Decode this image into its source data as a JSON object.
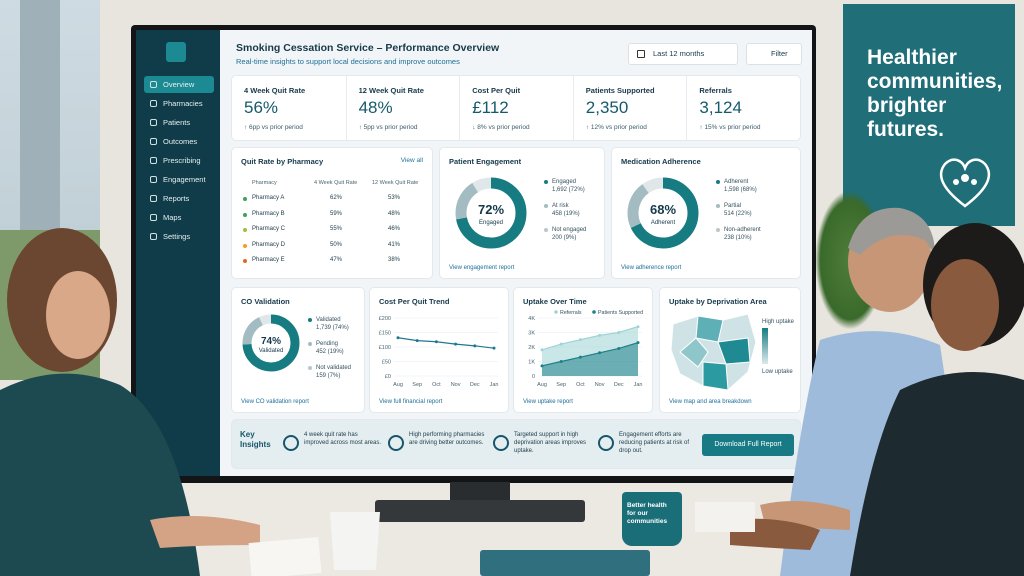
{
  "header": {
    "title": "Smoking Cessation Service – Performance Overview",
    "subtitle": "Real-time insights to support local decisions and improve outcomes",
    "period": "Last 12 months",
    "filter": "Filter"
  },
  "nav": [
    "Overview",
    "Pharmacies",
    "Patients",
    "Outcomes",
    "Prescribing",
    "Engagement",
    "Reports",
    "Maps",
    "Settings"
  ],
  "kpis": [
    {
      "label": "4 Week Quit Rate",
      "value": "56%",
      "change": "↑ 6pp vs prior period"
    },
    {
      "label": "12 Week Quit Rate",
      "value": "48%",
      "change": "↑ 5pp vs prior period"
    },
    {
      "label": "Cost Per Quit",
      "value": "£112",
      "change": "↓ 8% vs prior period"
    },
    {
      "label": "Patients Supported",
      "value": "2,350",
      "change": "↑ 12% vs prior period"
    },
    {
      "label": "Referrals",
      "value": "3,124",
      "change": "↑ 15% vs prior period"
    }
  ],
  "table": {
    "title": "Quit Rate by Pharmacy",
    "link": "View all",
    "columns": [
      "Pharmacy",
      "4 Week Quit Rate",
      "12 Week Quit Rate"
    ],
    "rows": [
      [
        "Pharmacy A",
        "62%",
        "53%"
      ],
      [
        "Pharmacy B",
        "59%",
        "48%"
      ],
      [
        "Pharmacy C",
        "55%",
        "46%"
      ],
      [
        "Pharmacy D",
        "50%",
        "41%"
      ],
      [
        "Pharmacy E",
        "47%",
        "38%"
      ]
    ],
    "dot_colors": [
      "#3aa655",
      "#3aa655",
      "#9cc23c",
      "#f0a020",
      "#e0662a"
    ]
  },
  "chart_data": [
    {
      "type": "pie",
      "title": "Patient Engagement",
      "center_label": "72%",
      "center_caption": "Engaged",
      "categories": [
        "Engaged",
        "At risk",
        "Not engaged"
      ],
      "values": [
        72,
        19,
        9
      ],
      "value_labels": [
        "1,692 (72%)",
        "458 (19%)",
        "200 (9%)"
      ],
      "colors": [
        "#167c82",
        "#a3bcc1",
        "#dfe7e9"
      ],
      "link": "View engagement report"
    },
    {
      "type": "pie",
      "title": "Medication Adherence",
      "center_label": "68%",
      "center_caption": "Adherent",
      "categories": [
        "Adherent",
        "Partial",
        "Non-adherent"
      ],
      "values": [
        68,
        22,
        10
      ],
      "value_labels": [
        "1,598 (68%)",
        "514 (22%)",
        "238 (10%)"
      ],
      "colors": [
        "#167c82",
        "#a3bcc1",
        "#dfe7e9"
      ],
      "link": "View adherence report"
    },
    {
      "type": "pie",
      "title": "CO Validation",
      "center_label": "74%",
      "center_caption": "Validated",
      "categories": [
        "Validated",
        "Pending",
        "Not validated"
      ],
      "values": [
        74,
        19,
        7
      ],
      "value_labels": [
        "1,739 (74%)",
        "452 (19%)",
        "159 (7%)"
      ],
      "colors": [
        "#167c82",
        "#a3bcc1",
        "#dfe7e9"
      ],
      "link": "View CO validation report"
    },
    {
      "type": "line",
      "title": "Cost Per Quit Trend",
      "categories": [
        "Aug",
        "Sep",
        "Oct",
        "Nov",
        "Dec",
        "Jan"
      ],
      "values": [
        132,
        122,
        118,
        110,
        104,
        96
      ],
      "color": "#1f7891",
      "ylim": [
        0,
        200
      ],
      "yticks": [
        {
          "value": 0,
          "label": "£0"
        },
        {
          "value": 50,
          "label": "£50"
        },
        {
          "value": 100,
          "label": "£100"
        },
        {
          "value": 150,
          "label": "£150"
        },
        {
          "value": 200,
          "label": "£200"
        }
      ],
      "grid": true,
      "link": "View full financial report"
    },
    {
      "type": "area",
      "title": "Uptake Over Time",
      "categories": [
        "Aug",
        "Sep",
        "Oct",
        "Nov",
        "Dec",
        "Jan"
      ],
      "series": [
        {
          "name": "Referrals",
          "color": "#9fd3d6",
          "values": [
            1800,
            2200,
            2500,
            2800,
            3000,
            3400
          ]
        },
        {
          "name": "Patients Supported",
          "color": "#1d7f88",
          "values": [
            700,
            1000,
            1300,
            1600,
            1900,
            2300
          ]
        }
      ],
      "ylim": [
        0,
        4000
      ],
      "yticks": [
        0,
        {
          "value": 1000,
          "label": "1K"
        },
        {
          "value": 2000,
          "label": "2K"
        },
        {
          "value": 3000,
          "label": "3K"
        },
        {
          "value": 4000,
          "label": "4K"
        }
      ],
      "grid": true,
      "link": "View uptake report"
    }
  ],
  "map": {
    "title": "Uptake by Deprivation Area",
    "legend_high": "High uptake",
    "legend_low": "Low uptake",
    "link": "View map and area breakdown"
  },
  "insights": {
    "title_line1": "Key",
    "title_line2": "Insights",
    "items": [
      "4 week quit rate has improved across most areas.",
      "High performing pharmacies are driving better outcomes.",
      "Targeted support in high deprivation areas improves uptake.",
      "Engagement efforts are reducing patients at risk of drop out."
    ],
    "button": "Download Full Report"
  },
  "banner": [
    "Healthier",
    "communities,",
    "brighter",
    "futures."
  ],
  "mug": "Better health for our communities"
}
